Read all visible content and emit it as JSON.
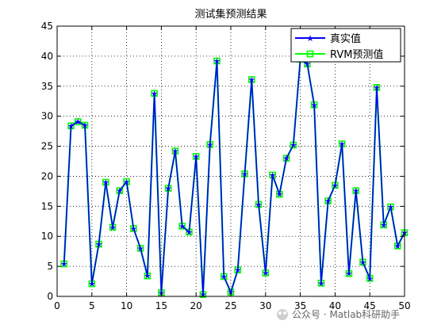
{
  "watermark": {
    "text": "公众号 · Matlab科研助手"
  },
  "chart_data": {
    "type": "line",
    "title": "测试集预测结果",
    "xlabel": "",
    "ylabel": "",
    "xlim": [
      0,
      50
    ],
    "ylim": [
      0,
      45
    ],
    "xticks": [
      0,
      5,
      10,
      15,
      20,
      25,
      30,
      35,
      40,
      45,
      50
    ],
    "yticks": [
      0,
      5,
      10,
      15,
      20,
      25,
      30,
      35,
      40,
      45
    ],
    "xtick_labels": [
      "0",
      "5",
      "10",
      "15",
      "20",
      "25",
      "30",
      "35",
      "40",
      "45",
      "50"
    ],
    "ytick_labels": [
      "0",
      "5",
      "10",
      "15",
      "20",
      "25",
      "30",
      "35",
      "40",
      "45"
    ],
    "grid": true,
    "legend_position": "top-right",
    "x": [
      1,
      2,
      3,
      4,
      5,
      6,
      7,
      8,
      9,
      10,
      11,
      12,
      13,
      14,
      15,
      16,
      17,
      18,
      19,
      20,
      21,
      22,
      23,
      24,
      25,
      26,
      27,
      28,
      29,
      30,
      31,
      32,
      33,
      34,
      35,
      36,
      37,
      38,
      39,
      40,
      41,
      42,
      43,
      44,
      45,
      46,
      47,
      48,
      49,
      50
    ],
    "series": [
      {
        "name": "真实值",
        "color": "#0000ff",
        "marker": "star",
        "values": [
          5.4,
          28.4,
          29.1,
          28.5,
          2.1,
          8.7,
          19.0,
          11.5,
          17.6,
          19.1,
          11.3,
          8.0,
          3.4,
          33.8,
          0.6,
          18.0,
          24.2,
          11.7,
          10.7,
          23.3,
          0.3,
          25.3,
          39.2,
          3.3,
          0.7,
          4.4,
          20.4,
          36.1,
          15.3,
          3.9,
          20.2,
          17.0,
          23.0,
          25.2,
          39.5,
          38.7,
          31.9,
          2.2,
          15.9,
          18.5,
          25.4,
          3.8,
          17.6,
          5.7,
          3.0,
          34.8,
          11.9,
          14.9,
          8.4,
          10.6
        ]
      },
      {
        "name": "RVM预测值",
        "color": "#00ff00",
        "marker": "square",
        "values": [
          5.4,
          28.4,
          29.1,
          28.5,
          2.1,
          8.7,
          19.0,
          11.5,
          17.6,
          19.1,
          11.3,
          8.0,
          3.4,
          33.8,
          0.6,
          18.0,
          24.2,
          11.7,
          10.7,
          23.3,
          0.3,
          25.3,
          39.2,
          3.3,
          0.7,
          4.4,
          20.4,
          36.1,
          15.3,
          3.9,
          20.2,
          17.0,
          23.0,
          25.2,
          39.5,
          38.7,
          31.9,
          2.2,
          15.9,
          18.5,
          25.4,
          3.8,
          17.6,
          5.7,
          3.0,
          34.8,
          11.9,
          14.9,
          8.4,
          10.6
        ]
      }
    ]
  }
}
